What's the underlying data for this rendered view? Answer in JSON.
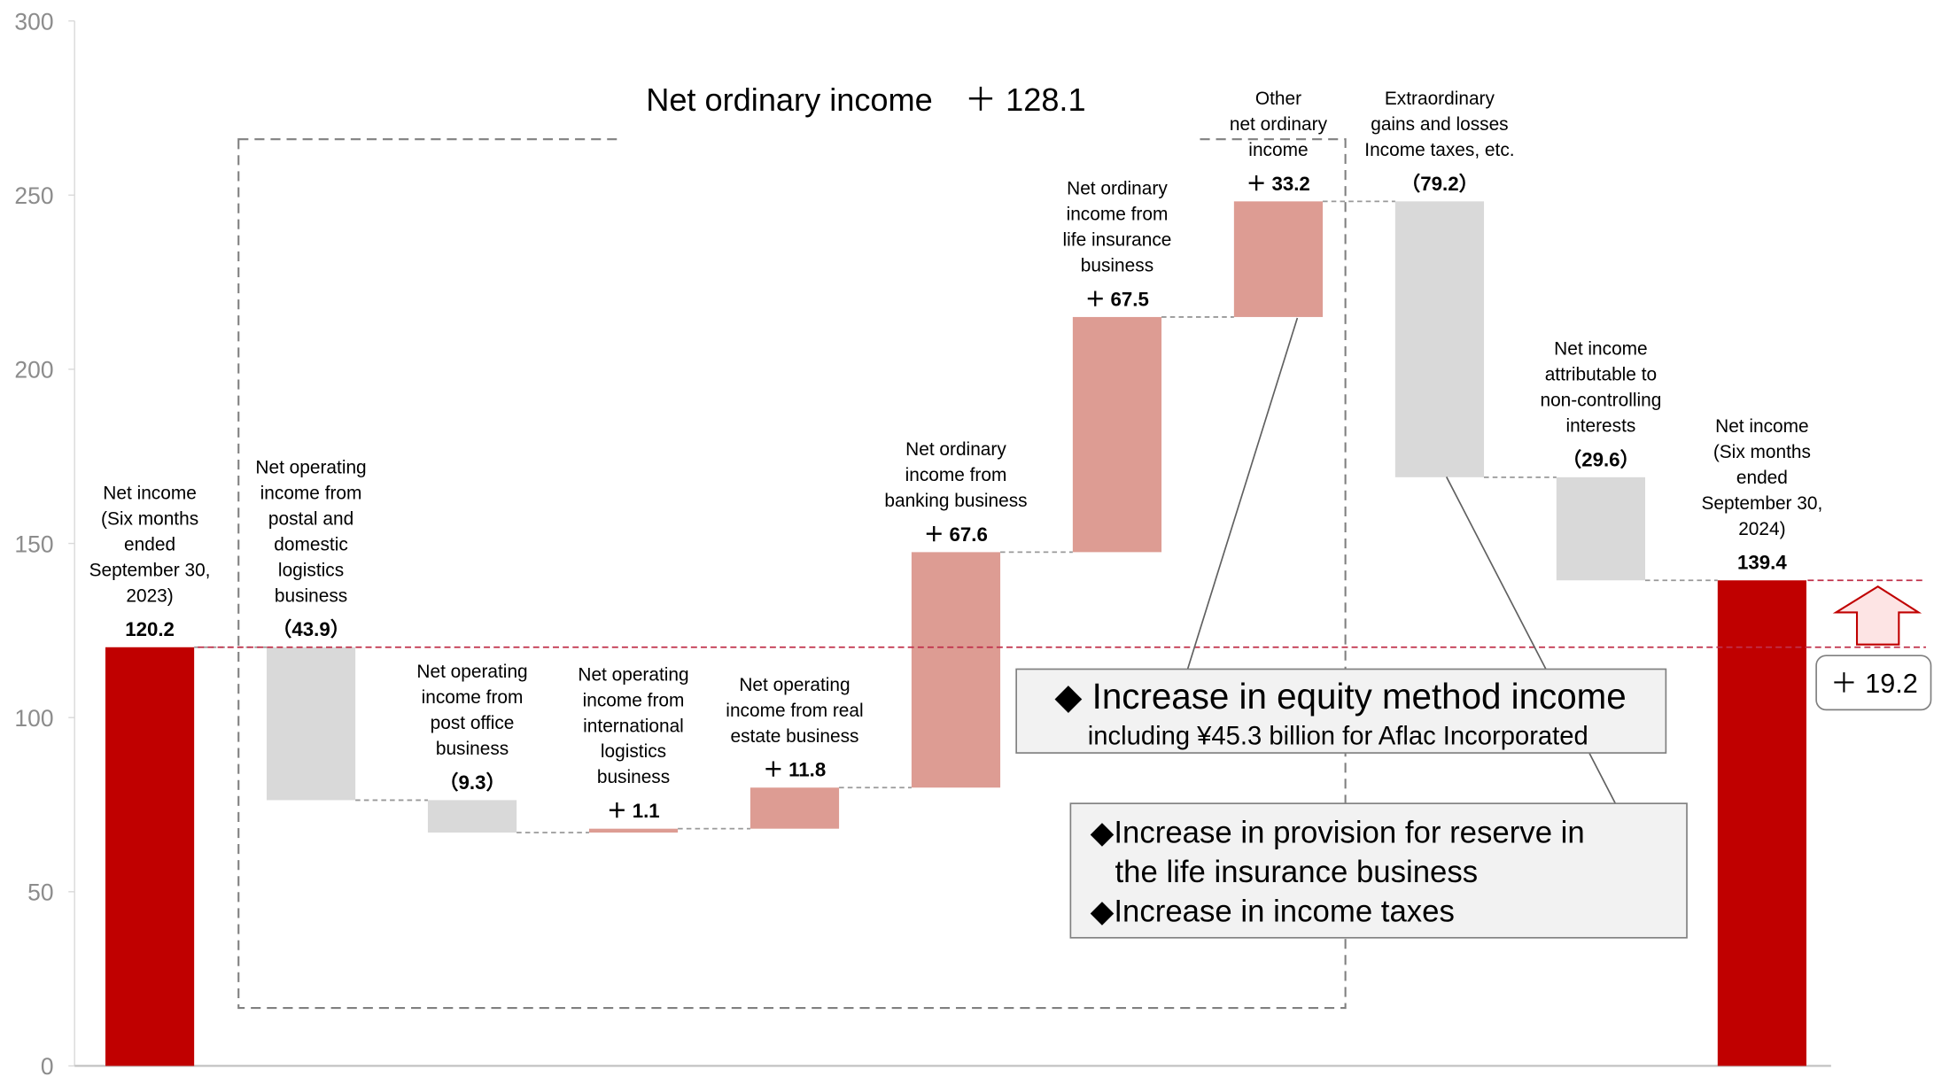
{
  "chart_data": {
    "type": "waterfall",
    "categories": [
      [
        "Net income",
        "(Six months",
        "ended",
        "September 30,",
        "2023)"
      ],
      [
        "Net operating",
        "income from",
        "postal and",
        "domestic",
        "logistics",
        "business"
      ],
      [
        "Net operating",
        "income from",
        "post office",
        "business"
      ],
      [
        "Net operating",
        "income from",
        "international",
        "logistics",
        "business"
      ],
      [
        "Net operating",
        "income from real",
        "estate business"
      ],
      [
        "Net ordinary",
        "income from",
        "banking business"
      ],
      [
        "Net ordinary",
        "income from",
        "life insurance",
        "business"
      ],
      [
        "Other",
        "net ordinary",
        "income"
      ],
      [
        "Extraordinary",
        "gains and losses",
        "Income taxes, etc."
      ],
      [
        "Net income",
        "attributable to",
        "non-controlling",
        "interests"
      ],
      [
        "Net income",
        "(Six months",
        "ended",
        "September 30,",
        "2024)"
      ]
    ],
    "values": [
      120.2,
      -43.9,
      -9.3,
      1.1,
      11.8,
      67.6,
      67.5,
      33.2,
      -79.2,
      -29.6,
      139.4
    ],
    "value_labels": [
      "120.2",
      "（43.9）",
      "（9.3）",
      "＋ 1.1",
      "＋ 11.8",
      "＋ 67.6",
      "＋ 67.5",
      "＋ 33.2",
      "（79.2）",
      "（29.6）",
      "139.4"
    ],
    "measure": [
      "absolute",
      "relative",
      "relative",
      "relative",
      "relative",
      "relative",
      "relative",
      "relative",
      "relative",
      "relative",
      "absolute"
    ],
    "colors": {
      "total": "#c00000",
      "increase": "#dd9c93",
      "decrease": "#d9d9d9"
    },
    "ylim": [
      0,
      300
    ],
    "yticks": [
      0,
      50,
      100,
      150,
      200,
      250,
      300
    ],
    "annotations": {
      "bracket": "Net ordinary income　＋ 128.1",
      "equity_box": {
        "title": "◆ Increase in equity method income",
        "subtitle": "including ¥45.3 billion for Aflac Incorporated"
      },
      "reserve_box": [
        "◆Increase in provision for reserve in",
        "the life insurance business",
        "◆Increase in income taxes"
      ],
      "difference": "＋ 19.2"
    }
  }
}
